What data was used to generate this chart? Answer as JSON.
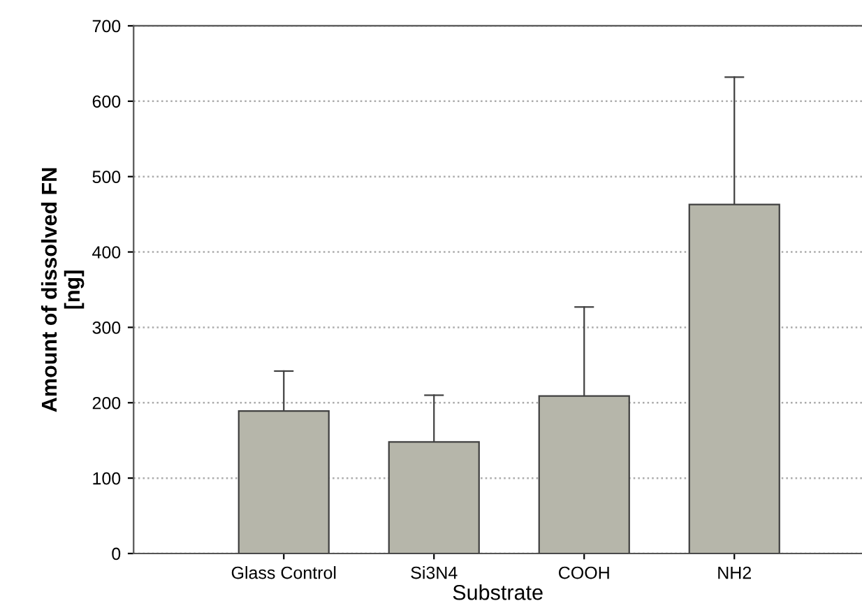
{
  "chart_data": {
    "type": "bar",
    "xlabel": "Substrate",
    "ylabel": "Amount of dissolved FN\n[ng]",
    "categories": [
      "Glass Control",
      "Si3N4",
      "COOH",
      "NH2"
    ],
    "series": [
      {
        "color": "#b6b6aa",
        "values": [
          189,
          148,
          209,
          463
        ],
        "errors": [
          [
            189,
            242
          ],
          [
            148,
            210
          ],
          [
            209,
            327
          ],
          [
            463,
            632
          ]
        ]
      }
    ],
    "ylim": [
      0,
      700
    ],
    "yticks": [
      0,
      100,
      200,
      300,
      400,
      500,
      600,
      700
    ],
    "grid": "y",
    "legend": false
  }
}
